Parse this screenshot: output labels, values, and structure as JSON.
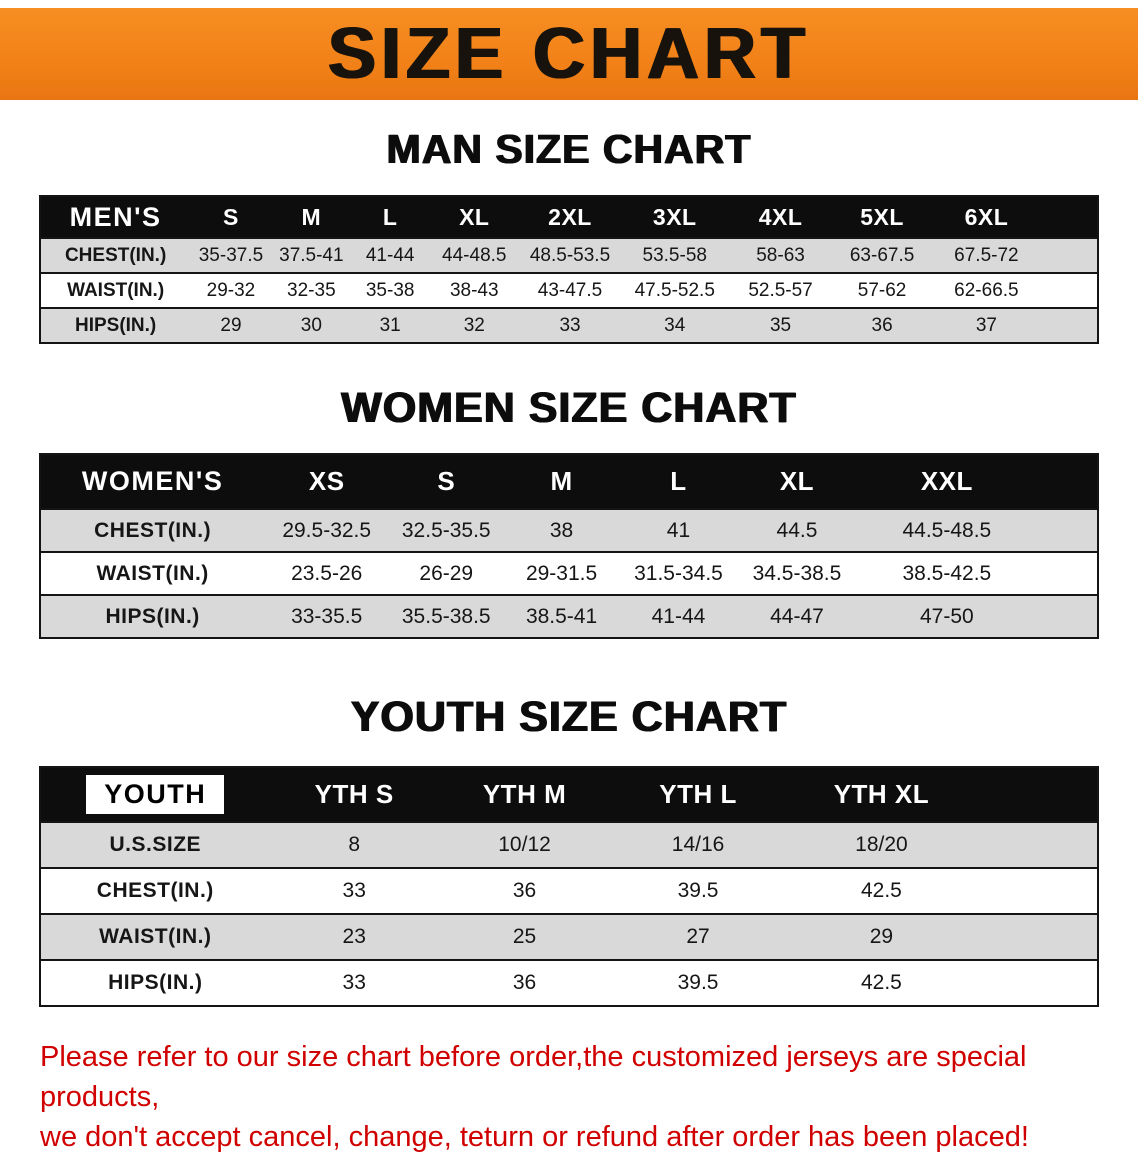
{
  "colors": {
    "banner": "#f07f16",
    "header_bg": "#0d0d0d",
    "row_alt": "#d9d9d9",
    "disclaimer": "#d10000"
  },
  "banner": {
    "title": "SIZE CHART"
  },
  "sections": {
    "men": {
      "heading": "MAN SIZE CHART",
      "table": {
        "header": [
          "MEN'S",
          "S",
          "M",
          "L",
          "XL",
          "2XL",
          "3XL",
          "4XL",
          "5XL",
          "6XL"
        ],
        "rows": [
          {
            "label": "CHEST(IN.)",
            "values": [
              "35-37.5",
              "37.5-41",
              "41-44",
              "44-48.5",
              "48.5-53.5",
              "53.5-58",
              "58-63",
              "63-67.5",
              "67.5-72"
            ]
          },
          {
            "label": "WAIST(IN.)",
            "values": [
              "29-32",
              "32-35",
              "35-38",
              "38-43",
              "43-47.5",
              "47.5-52.5",
              "52.5-57",
              "57-62",
              "62-66.5"
            ]
          },
          {
            "label": "HIPS(IN.)",
            "values": [
              "29",
              "30",
              "31",
              "32",
              "33",
              "34",
              "35",
              "36",
              "37"
            ]
          }
        ]
      }
    },
    "women": {
      "heading": "WOMEN SIZE CHART",
      "table": {
        "header": [
          "WOMEN'S",
          "XS",
          "S",
          "M",
          "L",
          "XL",
          "XXL"
        ],
        "rows": [
          {
            "label": "CHEST(IN.)",
            "values": [
              "29.5-32.5",
              "32.5-35.5",
              "38",
              "41",
              "44.5",
              "44.5-48.5"
            ]
          },
          {
            "label": "WAIST(IN.)",
            "values": [
              "23.5-26",
              "26-29",
              "29-31.5",
              "31.5-34.5",
              "34.5-38.5",
              "38.5-42.5"
            ]
          },
          {
            "label": "HIPS(IN.)",
            "values": [
              "33-35.5",
              "35.5-38.5",
              "38.5-41",
              "41-44",
              "44-47",
              "47-50"
            ]
          }
        ]
      }
    },
    "youth": {
      "heading": "YOUTH SIZE CHART",
      "table": {
        "header": [
          "YOUTH",
          "YTH S",
          "YTH M",
          "YTH L",
          "YTH XL"
        ],
        "rows": [
          {
            "label": "U.S.SIZE",
            "values": [
              "8",
              "10/12",
              "14/16",
              "18/20"
            ]
          },
          {
            "label": "CHEST(IN.)",
            "values": [
              "33",
              "36",
              "39.5",
              "42.5"
            ]
          },
          {
            "label": "WAIST(IN.)",
            "values": [
              "23",
              "25",
              "27",
              "29"
            ]
          },
          {
            "label": "HIPS(IN.)",
            "values": [
              "33",
              "36",
              "39.5",
              "42.5"
            ]
          }
        ]
      }
    }
  },
  "disclaimer": {
    "line1": "Please refer to our size chart before order,the customized jerseys are special products,",
    "line2": "we don't accept cancel, change, teturn or refund after order has been placed!"
  }
}
